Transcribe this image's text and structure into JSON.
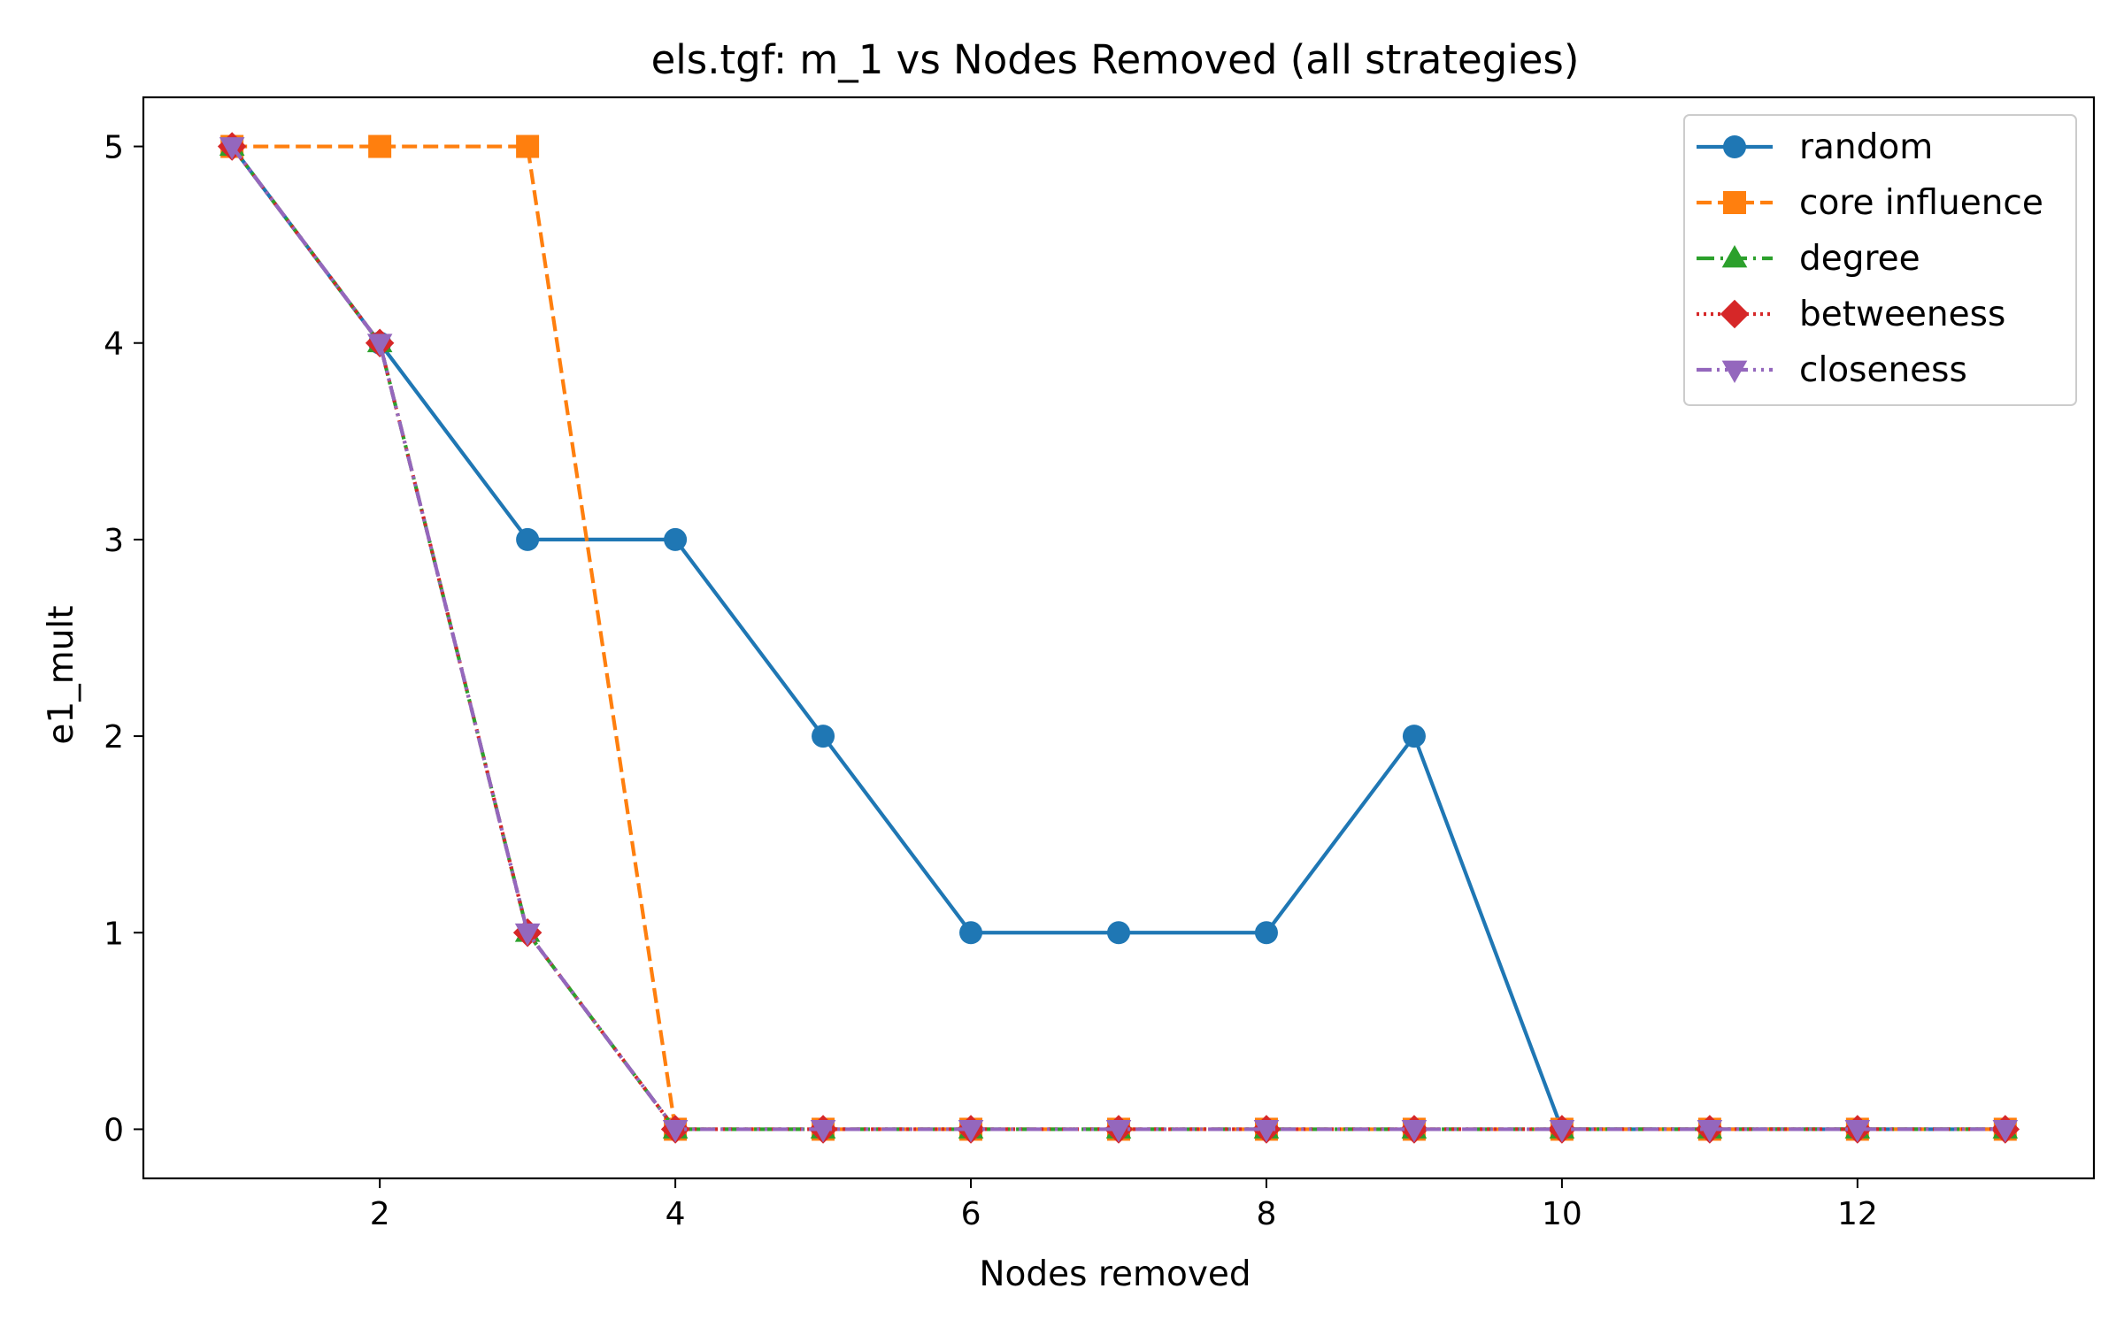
{
  "chart_data": {
    "type": "line",
    "title": "els.tgf: m_1 vs Nodes Removed (all strategies)",
    "xlabel": "Nodes removed",
    "ylabel": "e1_mult",
    "xlim": [
      0.4,
      13.6
    ],
    "ylim": [
      -0.25,
      5.25
    ],
    "xticks": [
      2,
      4,
      6,
      8,
      10,
      12
    ],
    "yticks": [
      0,
      1,
      2,
      3,
      4,
      5
    ],
    "grid": false,
    "legend_position": "top-right",
    "x": [
      1,
      2,
      3,
      4,
      5,
      6,
      7,
      8,
      9,
      10,
      11,
      12,
      13
    ],
    "series": [
      {
        "name": "random",
        "color": "#1f77b4",
        "linestyle": "solid",
        "marker": "circle",
        "values": [
          5,
          4,
          3,
          3,
          2,
          1,
          1,
          1,
          2,
          0,
          0,
          0,
          0
        ]
      },
      {
        "name": "core influence",
        "color": "#ff7f0e",
        "linestyle": "dashed",
        "marker": "square",
        "values": [
          5,
          5,
          5,
          0,
          0,
          0,
          0,
          0,
          0,
          0,
          0,
          0,
          0
        ]
      },
      {
        "name": "degree",
        "color": "#2ca02c",
        "linestyle": "dashdot",
        "marker": "triangle-up",
        "values": [
          5,
          4,
          1,
          0,
          0,
          0,
          0,
          0,
          0,
          0,
          0,
          0,
          0
        ]
      },
      {
        "name": "betweeness",
        "color": "#d62728",
        "linestyle": "dotted",
        "marker": "diamond",
        "values": [
          5,
          4,
          1,
          0,
          0,
          0,
          0,
          0,
          0,
          0,
          0,
          0,
          0
        ]
      },
      {
        "name": "closeness",
        "color": "#9467bd",
        "linestyle": "dashdotdot",
        "marker": "triangle-down",
        "values": [
          5,
          4,
          1,
          0,
          0,
          0,
          0,
          0,
          0,
          0,
          0,
          0,
          0
        ]
      }
    ]
  }
}
